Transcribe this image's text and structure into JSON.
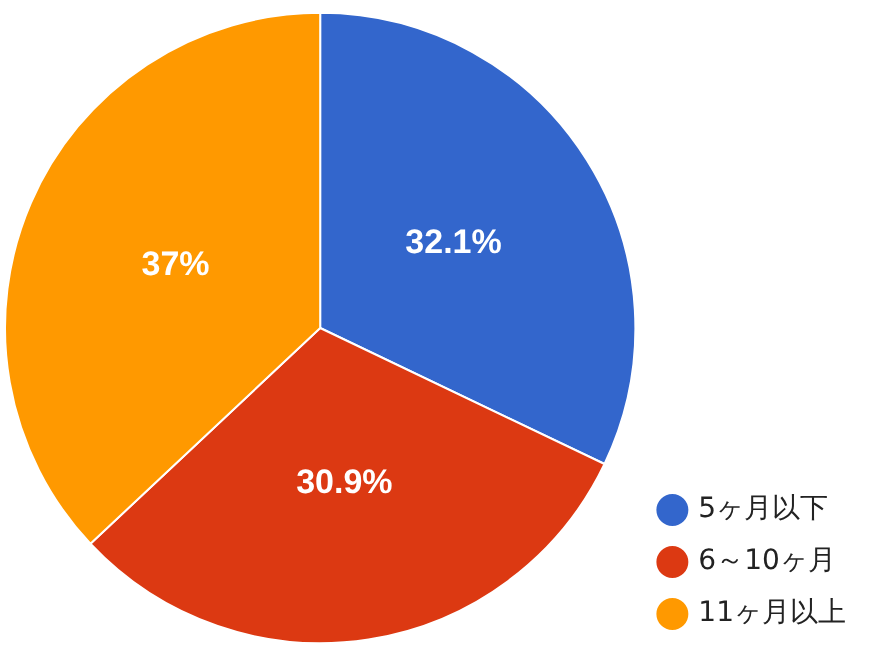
{
  "chart_data": {
    "type": "pie",
    "categories": [
      "5ヶ月以下",
      "6～10ヶ月",
      "11ヶ月以上"
    ],
    "values": [
      32.1,
      30.9,
      37
    ],
    "colors": [
      "#3366cc",
      "#dc3912",
      "#ff9900"
    ],
    "value_labels": [
      "32.1%",
      "30.9%",
      "37%"
    ],
    "legend": "bottom right"
  }
}
